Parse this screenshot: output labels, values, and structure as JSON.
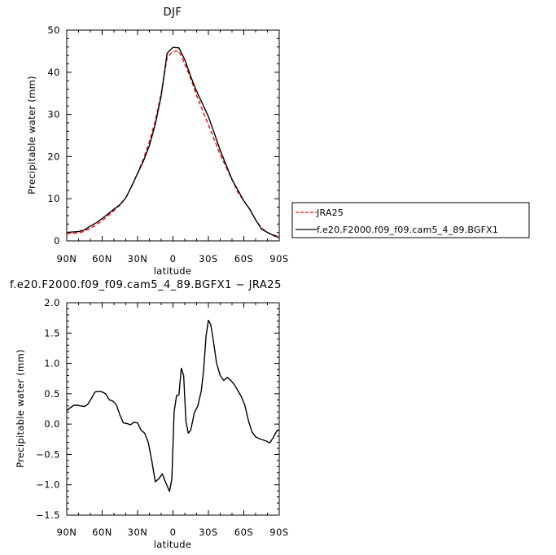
{
  "chart_data": [
    {
      "type": "line",
      "title": "DJF",
      "xlabel": "latitude",
      "ylabel": "Precipitable water (mm)",
      "xlim": [
        90,
        -90
      ],
      "ylim": [
        0,
        50
      ],
      "x_ticks": [
        90,
        60,
        30,
        0,
        -30,
        -60,
        -90
      ],
      "x_tick_labels": [
        "90N",
        "60N",
        "30N",
        "0",
        "30S",
        "60S",
        "90S"
      ],
      "y_ticks": [
        0,
        10,
        20,
        30,
        40,
        50
      ],
      "y_tick_labels": [
        "0",
        "10",
        "20",
        "30",
        "40",
        "50"
      ],
      "legend_position": "right",
      "series": [
        {
          "name": "JRA25",
          "color": "#ff0000",
          "dash": "dashed",
          "x": [
            90,
            85,
            80,
            75,
            70,
            65,
            60,
            55,
            50,
            45,
            40,
            35,
            30,
            25,
            20,
            15,
            10,
            5,
            0,
            -5,
            -10,
            -15,
            -20,
            -25,
            -30,
            -35,
            -40,
            -45,
            -50,
            -55,
            -60,
            -65,
            -70,
            -75,
            -80,
            -85,
            -90
          ],
          "values": [
            1.7,
            1.8,
            1.9,
            2.3,
            3.0,
            3.8,
            4.8,
            6.0,
            7.2,
            8.5,
            10.2,
            13.0,
            16.0,
            19.5,
            23.5,
            28.5,
            35.0,
            43.5,
            45.0,
            45.0,
            42.0,
            38.5,
            34.5,
            31.0,
            27.5,
            24.0,
            20.5,
            17.5,
            14.5,
            11.5,
            9.5,
            7.5,
            5.0,
            3.0,
            2.0,
            1.4,
            1.0
          ]
        },
        {
          "name": "f.e20.F2000.f09_f09.cam5_4_89.BGFX1",
          "color": "#000000",
          "dash": "solid",
          "x": [
            90,
            85,
            80,
            75,
            70,
            65,
            60,
            55,
            50,
            45,
            40,
            35,
            30,
            25,
            20,
            15,
            10,
            5,
            0,
            -5,
            -10,
            -15,
            -20,
            -25,
            -30,
            -35,
            -40,
            -45,
            -50,
            -55,
            -60,
            -65,
            -70,
            -75,
            -80,
            -85,
            -90
          ],
          "values": [
            2.0,
            2.1,
            2.2,
            2.6,
            3.5,
            4.3,
            5.3,
            6.4,
            7.5,
            8.6,
            10.2,
            13.0,
            16.0,
            19.0,
            22.6,
            27.7,
            34.4,
            44.5,
            45.9,
            45.8,
            43.0,
            39.0,
            35.5,
            32.5,
            29.5,
            25.5,
            21.5,
            18.0,
            14.6,
            12.0,
            9.5,
            7.5,
            5.0,
            2.8,
            2.0,
            1.3,
            0.8
          ]
        }
      ]
    },
    {
      "type": "line",
      "title": "f.e20.F2000.f09_f09.cam5_4_89.BGFX1  −  JRA25",
      "xlabel": "latitude",
      "ylabel": "Precipitable water (mm)",
      "xlim": [
        90,
        -90
      ],
      "ylim": [
        -1.5,
        2.0
      ],
      "x_ticks": [
        90,
        60,
        30,
        0,
        -30,
        -60,
        -90
      ],
      "x_tick_labels": [
        "90N",
        "60N",
        "30N",
        "0",
        "30S",
        "60S",
        "90S"
      ],
      "y_ticks": [
        -1.5,
        -1.0,
        -0.5,
        0.0,
        0.5,
        1.0,
        1.5,
        2.0
      ],
      "y_tick_labels": [
        "−1.5",
        "−1.0",
        "−0.5",
        "0.0",
        "0.5",
        "1.0",
        "1.5",
        "2.0"
      ],
      "series": [
        {
          "color": "#000000",
          "dash": "solid",
          "x": [
            90,
            87,
            84,
            81,
            78,
            75,
            72,
            69,
            66,
            63,
            60,
            57,
            54,
            51,
            48,
            45,
            42,
            39,
            36,
            33,
            30,
            27,
            24,
            21,
            18,
            15,
            12,
            9,
            6,
            3,
            1,
            -1,
            -3,
            -5,
            -7,
            -9,
            -11,
            -13,
            -15,
            -18,
            -21,
            -24,
            -26,
            -28,
            -30,
            -32,
            -34,
            -37,
            -40,
            -43,
            -46,
            -49,
            -52,
            -55,
            -58,
            -61,
            -64,
            -67,
            -70,
            -73,
            -76,
            -79,
            -82,
            -85,
            -88,
            -90
          ],
          "values": [
            0.22,
            0.27,
            0.31,
            0.31,
            0.3,
            0.29,
            0.33,
            0.43,
            0.53,
            0.54,
            0.53,
            0.5,
            0.4,
            0.38,
            0.32,
            0.15,
            0.02,
            0.01,
            -0.01,
            0.03,
            0.02,
            -0.1,
            -0.15,
            -0.3,
            -0.6,
            -0.95,
            -0.9,
            -0.82,
            -0.97,
            -1.11,
            -0.9,
            0.2,
            0.47,
            0.48,
            0.92,
            0.8,
            0.05,
            -0.15,
            -0.1,
            0.18,
            0.3,
            0.55,
            0.9,
            1.45,
            1.71,
            1.64,
            1.4,
            1.0,
            0.8,
            0.72,
            0.77,
            0.72,
            0.65,
            0.55,
            0.45,
            0.3,
            0.05,
            -0.13,
            -0.21,
            -0.24,
            -0.26,
            -0.28,
            -0.31,
            -0.22,
            -0.11,
            -0.1
          ]
        }
      ]
    }
  ]
}
